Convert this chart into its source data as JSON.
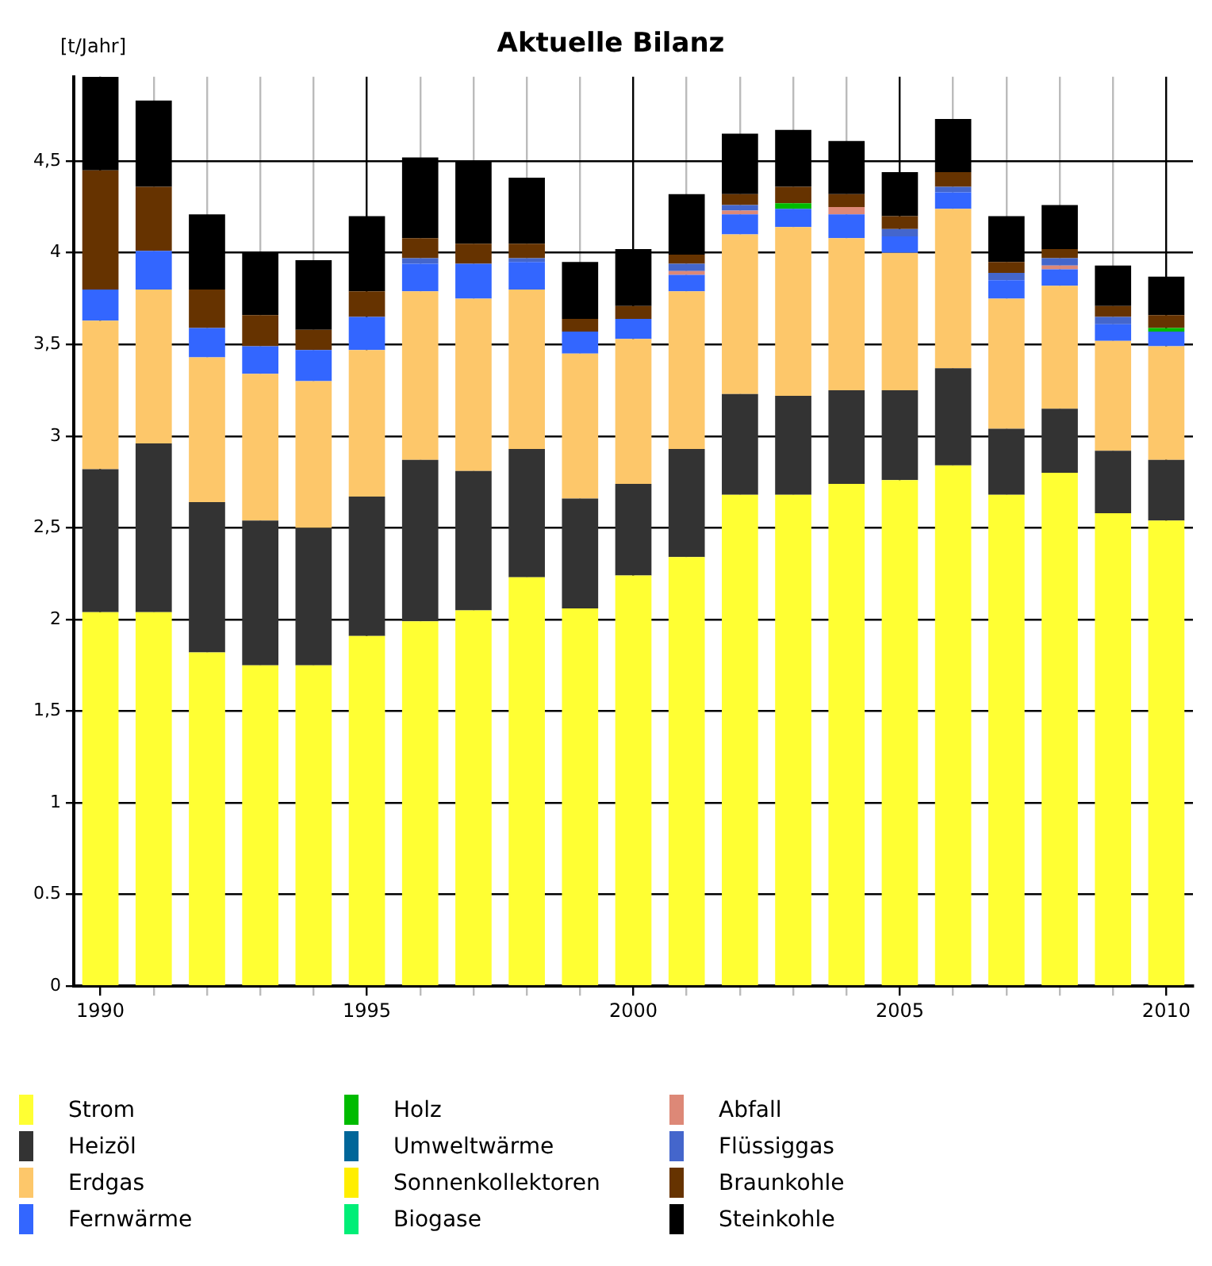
{
  "chart_data": {
    "type": "bar",
    "title": "Aktuelle Bilanz",
    "ylabel": "[t/Jahr]",
    "stacked": true,
    "grid": true,
    "legend": "bottom",
    "categories": [
      "1990",
      null,
      null,
      null,
      null,
      "1995",
      null,
      null,
      null,
      null,
      "2000",
      null,
      null,
      null,
      null,
      "2005",
      null,
      null,
      null,
      null,
      "2010"
    ],
    "ylim": [
      0,
      4.96
    ],
    "yticks": [
      0,
      0.5,
      1,
      {
        "value": 1.5,
        "label": "1,5"
      },
      2,
      {
        "value": 2.5,
        "label": "2,5"
      },
      3,
      {
        "value": 3.5,
        "label": "3,5"
      },
      4,
      {
        "value": 4.5,
        "label": "4,5"
      }
    ],
    "series": [
      {
        "name": "Strom",
        "color": "#ffff33",
        "values": [
          2.04,
          2.04,
          1.82,
          1.75,
          1.75,
          1.91,
          1.99,
          2.05,
          2.23,
          2.06,
          2.24,
          2.34,
          2.68,
          2.68,
          2.74,
          2.76,
          2.84,
          2.68,
          2.8,
          2.58,
          2.54
        ]
      },
      {
        "name": "Heizöl",
        "color": "#333333",
        "values": [
          0.78,
          0.92,
          0.82,
          0.79,
          0.75,
          0.76,
          0.88,
          0.76,
          0.7,
          0.6,
          0.5,
          0.59,
          0.55,
          0.54,
          0.51,
          0.49,
          0.53,
          0.36,
          0.35,
          0.34,
          0.33
        ]
      },
      {
        "name": "Erdgas",
        "color": "#fdc76a",
        "values": [
          0.81,
          0.84,
          0.79,
          0.8,
          0.8,
          0.8,
          0.92,
          0.94,
          0.87,
          0.79,
          0.79,
          0.86,
          0.87,
          0.92,
          0.83,
          0.75,
          0.87,
          0.71,
          0.67,
          0.6,
          0.62
        ]
      },
      {
        "name": "Fernwärme",
        "color": "#3366ff",
        "values": [
          0.17,
          0.21,
          0.16,
          0.15,
          0.17,
          0.18,
          0.15,
          0.19,
          0.15,
          0.12,
          0.11,
          0.09,
          0.11,
          0.1,
          0.13,
          0.09,
          0.09,
          0.1,
          0.09,
          0.09,
          0.08
        ]
      },
      {
        "name": "Holz",
        "color": "#00bb00",
        "values": [
          0,
          0,
          0,
          0,
          0,
          0,
          0,
          0,
          0,
          0,
          0,
          0,
          0,
          0.03,
          0,
          0,
          0,
          0,
          0,
          0,
          0.02
        ]
      },
      {
        "name": "Umweltwärme",
        "color": "#006699",
        "values": [
          0,
          0,
          0,
          0,
          0,
          0,
          0,
          0,
          0,
          0,
          0,
          0,
          0,
          0,
          0,
          0,
          0,
          0,
          0,
          0,
          0
        ]
      },
      {
        "name": "Sonnenkollektoren",
        "color": "#ffee00",
        "values": [
          0,
          0,
          0,
          0,
          0,
          0,
          0,
          0,
          0,
          0,
          0,
          0,
          0,
          0,
          0,
          0,
          0,
          0,
          0,
          0,
          0
        ]
      },
      {
        "name": "Biogase",
        "color": "#00ee77",
        "values": [
          0,
          0,
          0,
          0,
          0,
          0,
          0,
          0,
          0,
          0,
          0,
          0,
          0,
          0,
          0,
          0,
          0,
          0,
          0,
          0,
          0
        ]
      },
      {
        "name": "Abfall",
        "color": "#dd8877",
        "values": [
          0,
          0,
          0,
          0,
          0,
          0,
          0,
          0,
          0,
          0,
          0,
          0.02,
          0.02,
          0,
          0.04,
          0,
          0,
          0,
          0.02,
          0,
          0
        ]
      },
      {
        "name": "Flüssiggas",
        "color": "#4466cc",
        "values": [
          0,
          0,
          0,
          0,
          0,
          0,
          0.03,
          0,
          0.02,
          0,
          0,
          0.04,
          0.03,
          0,
          0,
          0.04,
          0.03,
          0.04,
          0.04,
          0.04,
          0
        ]
      },
      {
        "name": "Braunkohle",
        "color": "#663300",
        "values": [
          0.65,
          0.35,
          0.21,
          0.17,
          0.11,
          0.14,
          0.11,
          0.11,
          0.08,
          0.07,
          0.07,
          0.05,
          0.06,
          0.09,
          0.07,
          0.07,
          0.08,
          0.06,
          0.05,
          0.06,
          0.07
        ]
      },
      {
        "name": "Steinkohle",
        "color": "#000000",
        "values": [
          0.51,
          0.47,
          0.41,
          0.34,
          0.38,
          0.41,
          0.44,
          0.45,
          0.36,
          0.31,
          0.31,
          0.33,
          0.33,
          0.31,
          0.29,
          0.24,
          0.29,
          0.25,
          0.24,
          0.22,
          0.21
        ]
      }
    ]
  }
}
